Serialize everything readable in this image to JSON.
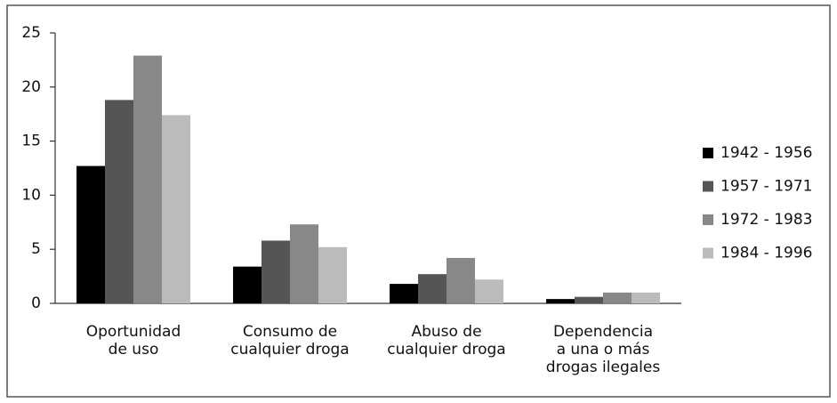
{
  "chart_data": {
    "type": "bar",
    "categories": [
      "Oportunidad\nde uso",
      "Consumo de\ncualquier droga",
      "Abuso de\ncualquier droga",
      "Dependencia\na una o más\ndrogas ilegales"
    ],
    "series": [
      {
        "name": "1942 - 1956",
        "color": "#000000",
        "values": [
          12.7,
          3.4,
          1.8,
          0.4
        ]
      },
      {
        "name": "1957 - 1971",
        "color": "#555555",
        "values": [
          18.8,
          5.8,
          2.7,
          0.6
        ]
      },
      {
        "name": "1972 - 1983",
        "color": "#888888",
        "values": [
          22.9,
          7.3,
          4.2,
          1.0
        ]
      },
      {
        "name": "1984 - 1996",
        "color": "#bbbbbb",
        "values": [
          17.4,
          5.2,
          2.2,
          1.0
        ]
      }
    ],
    "ylim": [
      0,
      25
    ],
    "yticks": [
      0,
      5,
      10,
      15,
      20,
      25
    ],
    "grid": false,
    "legend": "right"
  }
}
